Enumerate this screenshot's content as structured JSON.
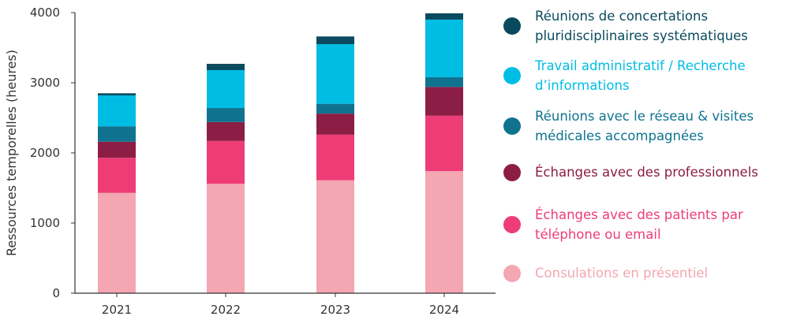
{
  "chart_data": {
    "type": "bar",
    "stacked": true,
    "categories": [
      "2021",
      "2022",
      "2023",
      "2024"
    ],
    "ylabel": "Ressources temporelles (heures)",
    "xlabel": "",
    "ylim": [
      0,
      4000
    ],
    "yticks": [
      "0",
      "1000",
      "2000",
      "3000",
      "4000"
    ],
    "legend_position": "right",
    "series": [
      {
        "name": "Consulations en présentiel",
        "color": "#f4a6b2",
        "values": [
          1430,
          1560,
          1610,
          1740
        ]
      },
      {
        "name": "Échanges avec des patients par téléphone ou email",
        "color": "#ee3d76",
        "values": [
          500,
          610,
          650,
          790
        ]
      },
      {
        "name": "Échanges avec des professionnels",
        "color": "#8c1d44",
        "values": [
          230,
          270,
          300,
          410
        ]
      },
      {
        "name": "Réunions avec le réseau & visites médicales accompagnées",
        "color": "#0f7390",
        "values": [
          220,
          200,
          140,
          140
        ]
      },
      {
        "name": "Travail administratif / Recherche d’informations",
        "color": "#00bde4",
        "values": [
          440,
          540,
          850,
          820
        ]
      },
      {
        "name": "Réunions de concertations pluridisciplinaires systématiques",
        "color": "#0a4a5e",
        "values": [
          30,
          90,
          110,
          90
        ]
      }
    ]
  }
}
